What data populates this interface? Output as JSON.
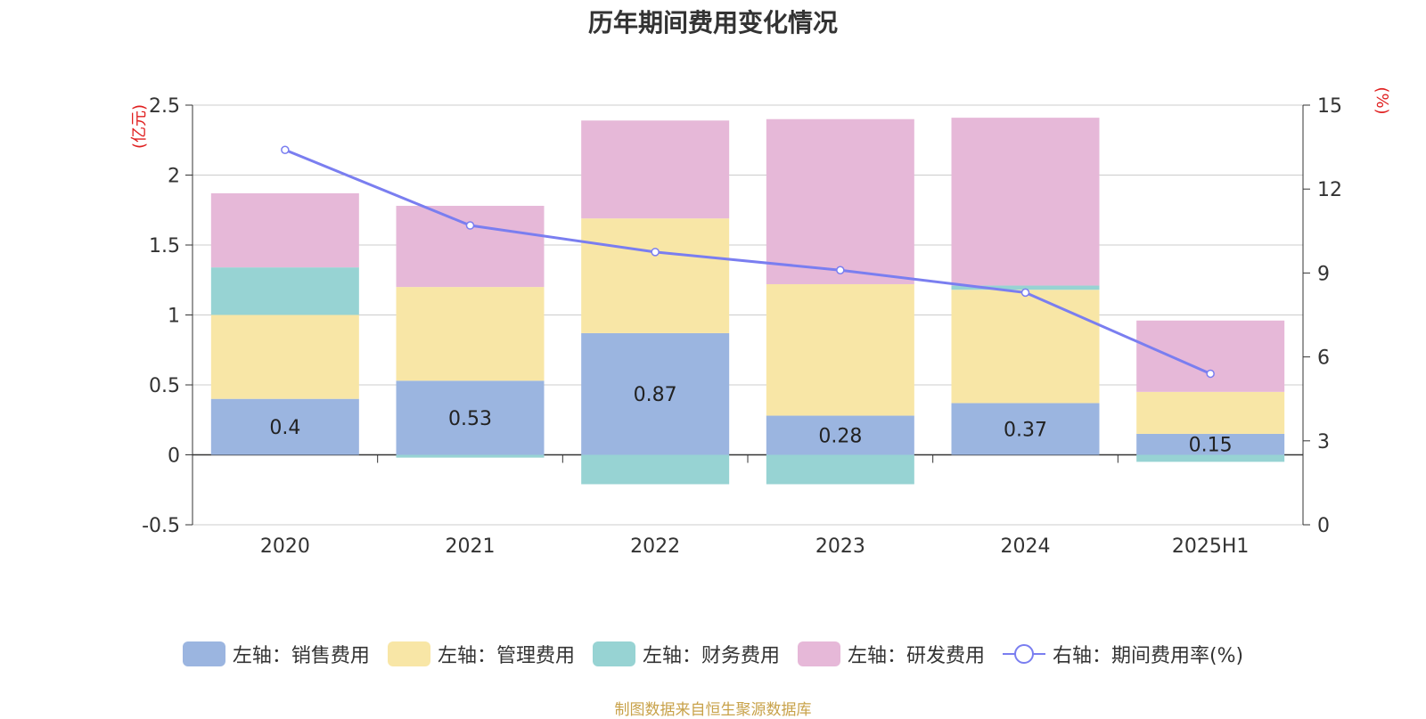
{
  "chart_data": {
    "type": "bar",
    "title": "历年期间费用变化情况",
    "categories": [
      "2020",
      "2021",
      "2022",
      "2023",
      "2024",
      "2025H1"
    ],
    "left_axis": {
      "unit_label": "(亿元)",
      "ylim": [
        -0.5,
        2.5
      ],
      "ticks": [
        "-0.5",
        "0",
        "0.5",
        "1",
        "1.5",
        "2",
        "2.5"
      ]
    },
    "right_axis": {
      "unit_label": "(%)",
      "ylim": [
        0,
        15
      ],
      "ticks": [
        "0",
        "3",
        "6",
        "9",
        "12",
        "15"
      ]
    },
    "stacked": true,
    "grid": true,
    "legend_position": "bottom",
    "series": [
      {
        "name": "左轴：销售费用",
        "type": "bar",
        "axis": "left",
        "color": "#9bb5e0",
        "values": [
          0.4,
          0.53,
          0.87,
          0.28,
          0.37,
          0.15
        ],
        "data_labels": [
          "0.4",
          "0.53",
          "0.87",
          "0.28",
          "0.37",
          "0.15"
        ]
      },
      {
        "name": "左轴：管理费用",
        "type": "bar",
        "axis": "left",
        "color": "#f8e6a6",
        "values": [
          0.6,
          0.67,
          0.82,
          0.94,
          0.81,
          0.3
        ]
      },
      {
        "name": "左轴：财务费用",
        "type": "bar",
        "axis": "left",
        "color": "#97d3d3",
        "values": [
          0.34,
          -0.02,
          -0.21,
          -0.21,
          0.03,
          -0.05
        ]
      },
      {
        "name": "左轴：研发费用",
        "type": "bar",
        "axis": "left",
        "color": "#e6b8d8",
        "values": [
          0.53,
          0.58,
          0.7,
          1.18,
          1.2,
          0.51
        ]
      },
      {
        "name": "右轴：期间费用率(%)",
        "type": "line",
        "axis": "right",
        "color": "#7a7ef0",
        "values": [
          13.4,
          10.7,
          9.75,
          9.1,
          8.3,
          5.4
        ]
      }
    ],
    "source_note": "制图数据来自恒生聚源数据库"
  }
}
